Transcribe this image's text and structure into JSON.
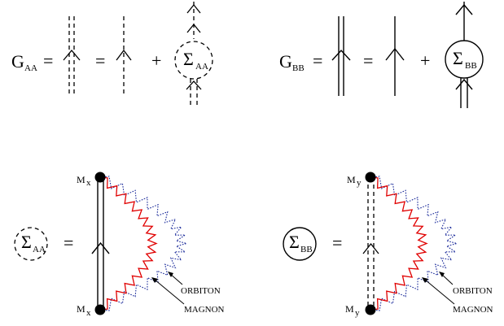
{
  "equation_aa": {
    "lhs_symbol": "G",
    "lhs_subscript": "AA",
    "equals_1": "=",
    "equals_2": "=",
    "plus": "+",
    "self_energy_symbol": "Σ",
    "self_energy_subscript": "AA"
  },
  "equation_bb": {
    "lhs_symbol": "G",
    "lhs_subscript": "BB",
    "equals_1": "=",
    "equals_2": "=",
    "plus": "+",
    "self_energy_symbol": "Σ",
    "self_energy_subscript": "BB"
  },
  "sigma_aa_diagram": {
    "symbol": "Σ",
    "subscript": "AA",
    "equals": "=",
    "top_vertex_symbol": "M",
    "top_vertex_subscript": "x",
    "bottom_vertex_symbol": "M",
    "bottom_vertex_subscript": "x",
    "orbiton_label": "ORBITON",
    "magnon_label": "MAGNON"
  },
  "sigma_bb_diagram": {
    "symbol": "Σ",
    "subscript": "BB",
    "equals": "=",
    "top_vertex_symbol": "M",
    "top_vertex_subscript": "y",
    "bottom_vertex_symbol": "M",
    "bottom_vertex_subscript": "y",
    "orbiton_label": "ORBITON",
    "magnon_label": "MAGNON"
  },
  "colors": {
    "ink": "#000000",
    "magnon": "#e00000",
    "orbiton": "#1a2a9a"
  }
}
